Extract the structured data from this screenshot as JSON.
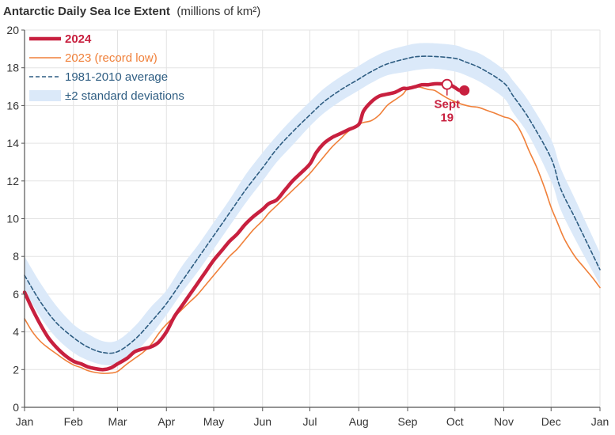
{
  "chart_data": {
    "type": "line",
    "title": "Antarctic Daily Sea Ice Extent",
    "title_unit": "(millions of km²)",
    "ylim": [
      0,
      20
    ],
    "y_ticks": [
      0,
      2,
      4,
      6,
      8,
      10,
      12,
      14,
      16,
      18,
      20
    ],
    "xlim": [
      0,
      365
    ],
    "x_ticks": [
      {
        "label": "Jan",
        "day": 0
      },
      {
        "label": "Feb",
        "day": 31
      },
      {
        "label": "Mar",
        "day": 59
      },
      {
        "label": "Apr",
        "day": 90
      },
      {
        "label": "May",
        "day": 120
      },
      {
        "label": "Jun",
        "day": 151
      },
      {
        "label": "Jul",
        "day": 181
      },
      {
        "label": "Aug",
        "day": 212
      },
      {
        "label": "Sep",
        "day": 243
      },
      {
        "label": "Oct",
        "day": 273
      },
      {
        "label": "Nov",
        "day": 304
      },
      {
        "label": "Dec",
        "day": 334
      },
      {
        "label": "Jan",
        "day": 365
      }
    ],
    "series": [
      {
        "name": "±2 standard deviations",
        "kind": "band",
        "color": "#dbe9f9",
        "x": [
          0,
          10,
          20,
          31,
          40,
          50,
          59,
          70,
          80,
          90,
          100,
          110,
          120,
          130,
          140,
          151,
          160,
          170,
          181,
          190,
          200,
          212,
          220,
          230,
          243,
          250,
          260,
          273,
          280,
          290,
          304,
          310,
          320,
          334,
          340,
          350,
          365
        ],
        "lower": [
          6.2,
          4.8,
          3.7,
          2.9,
          2.5,
          2.25,
          2.3,
          2.9,
          3.8,
          4.9,
          6.1,
          7.2,
          8.4,
          9.6,
          10.8,
          12.0,
          13.0,
          13.9,
          14.9,
          15.6,
          16.2,
          16.8,
          17.2,
          17.6,
          17.8,
          17.9,
          17.95,
          17.8,
          17.6,
          17.2,
          16.4,
          15.6,
          14.4,
          12.0,
          10.5,
          8.8,
          6.5
        ],
        "upper": [
          8.0,
          6.6,
          5.4,
          4.4,
          3.9,
          3.5,
          3.55,
          4.3,
          5.3,
          6.2,
          7.5,
          8.6,
          9.8,
          11.0,
          12.3,
          13.5,
          14.4,
          15.3,
          16.2,
          16.9,
          17.5,
          18.1,
          18.5,
          18.9,
          19.2,
          19.3,
          19.3,
          19.2,
          19.0,
          18.7,
          17.9,
          17.3,
          16.2,
          14.2,
          12.7,
          10.9,
          8.2
        ]
      },
      {
        "name": "1981-2010 average",
        "kind": "dashed",
        "color": "#2e5d82",
        "x": [
          0,
          10,
          20,
          31,
          40,
          50,
          59,
          70,
          80,
          90,
          100,
          110,
          120,
          130,
          140,
          151,
          160,
          170,
          181,
          190,
          200,
          212,
          220,
          230,
          243,
          250,
          260,
          273,
          280,
          290,
          304,
          310,
          320,
          334,
          340,
          350,
          365
        ],
        "values": [
          7.0,
          5.6,
          4.5,
          3.7,
          3.2,
          2.9,
          2.95,
          3.6,
          4.5,
          5.5,
          6.7,
          7.9,
          9.1,
          10.3,
          11.5,
          12.7,
          13.7,
          14.6,
          15.5,
          16.2,
          16.8,
          17.4,
          17.8,
          18.2,
          18.5,
          18.6,
          18.6,
          18.5,
          18.3,
          17.95,
          17.2,
          16.5,
          15.3,
          13.2,
          11.6,
          9.9,
          7.3
        ]
      },
      {
        "name": "2023 (record low)",
        "kind": "line",
        "color": "#f0803a",
        "x": [
          0,
          5,
          10,
          15,
          20,
          25,
          31,
          36,
          40,
          45,
          50,
          55,
          59,
          65,
          70,
          75,
          80,
          85,
          90,
          95,
          100,
          105,
          110,
          115,
          120,
          125,
          130,
          135,
          140,
          145,
          151,
          155,
          160,
          165,
          170,
          175,
          181,
          185,
          190,
          195,
          200,
          205,
          212,
          215,
          220,
          225,
          230,
          235,
          240,
          243,
          248,
          252,
          256,
          260,
          264,
          268,
          273,
          278,
          283,
          288,
          293,
          298,
          304,
          308,
          312,
          316,
          320,
          325,
          330,
          334,
          338,
          342,
          346,
          350,
          355,
          360,
          365
        ],
        "values": [
          4.7,
          4.0,
          3.5,
          3.15,
          2.85,
          2.55,
          2.25,
          2.1,
          1.95,
          1.85,
          1.8,
          1.82,
          1.9,
          2.3,
          2.6,
          2.9,
          3.3,
          3.9,
          4.4,
          4.8,
          5.2,
          5.6,
          6.0,
          6.5,
          7.0,
          7.5,
          8.0,
          8.4,
          8.9,
          9.4,
          9.9,
          10.3,
          10.7,
          11.1,
          11.5,
          11.9,
          12.4,
          12.8,
          13.3,
          13.8,
          14.2,
          14.6,
          15.0,
          15.1,
          15.2,
          15.5,
          16.0,
          16.3,
          16.6,
          16.9,
          17.0,
          16.95,
          16.85,
          16.8,
          16.6,
          16.4,
          16.2,
          16.05,
          15.95,
          15.9,
          15.75,
          15.6,
          15.4,
          15.3,
          15.0,
          14.4,
          13.6,
          12.7,
          11.6,
          10.6,
          9.8,
          9.0,
          8.4,
          7.9,
          7.4,
          6.9,
          6.35
        ]
      },
      {
        "name": "2024",
        "kind": "bold",
        "color": "#c8203f",
        "x": [
          0,
          5,
          10,
          15,
          20,
          25,
          31,
          36,
          40,
          45,
          50,
          55,
          59,
          65,
          70,
          75,
          80,
          85,
          90,
          95,
          100,
          105,
          110,
          115,
          120,
          125,
          130,
          135,
          140,
          145,
          151,
          155,
          160,
          165,
          170,
          175,
          181,
          185,
          190,
          195,
          200,
          205,
          212,
          215,
          220,
          225,
          230,
          235,
          240,
          243,
          248,
          252,
          256,
          260,
          264,
          268,
          270,
          273,
          276,
          279
        ],
        "values": [
          6.1,
          5.2,
          4.4,
          3.7,
          3.2,
          2.8,
          2.45,
          2.3,
          2.15,
          2.05,
          2.0,
          2.1,
          2.3,
          2.6,
          2.95,
          3.1,
          3.2,
          3.45,
          4.0,
          4.8,
          5.4,
          6.0,
          6.6,
          7.2,
          7.8,
          8.3,
          8.8,
          9.2,
          9.7,
          10.1,
          10.5,
          10.8,
          11.0,
          11.5,
          12.0,
          12.4,
          12.9,
          13.5,
          14.0,
          14.3,
          14.5,
          14.7,
          15.0,
          15.7,
          16.2,
          16.5,
          16.6,
          16.7,
          16.9,
          16.9,
          17.0,
          17.1,
          17.1,
          17.15,
          17.15,
          17.12,
          17.1,
          16.95,
          16.8,
          16.8
        ]
      }
    ],
    "annotation": {
      "line1": "Sept",
      "line2": "19",
      "day": 268,
      "value": 17.12,
      "color": "#c8203f",
      "end_day": 279,
      "end_value": 16.8
    }
  }
}
